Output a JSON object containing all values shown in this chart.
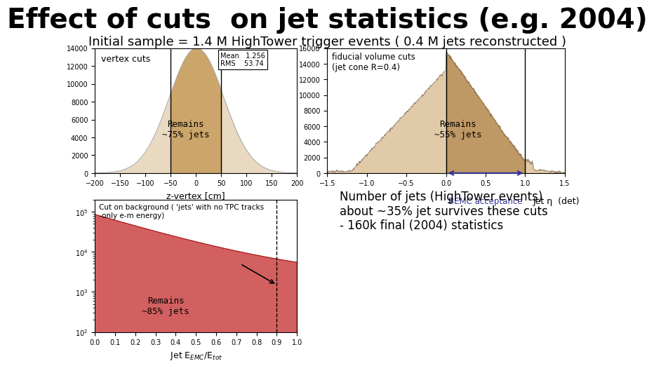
{
  "title": "Effect of cuts  on jet statistics (e.g. 2004)",
  "subtitle": "Initial sample = 1.4 M HighTower trigger events ( 0.4 M jets reconstructed )",
  "title_fontsize": 28,
  "subtitle_fontsize": 13,
  "bg_color": "#ffffff",
  "panel1": {
    "label": "vertex cuts",
    "xlabel": "z-vertex [cm]",
    "mean": 1.256,
    "rms": 53.74,
    "xlim": [
      -200,
      200
    ],
    "ylim": [
      0,
      14000
    ],
    "yticks": [
      0,
      2000,
      4000,
      6000,
      8000,
      10000,
      12000,
      14000
    ],
    "cut_lo": -50,
    "cut_hi": 50,
    "remains_text": "Remains\n~75% jets",
    "hist_color": "#d4b483",
    "hist_edge": "#888888",
    "cut_color": "#c8a060"
  },
  "panel2": {
    "label": "fiducial volume cuts\n(jet cone R=0.4)",
    "xlabel": "Jet η  (det)",
    "xlabel2": "BEMC acceptance",
    "xlim": [
      -1.5,
      1.5
    ],
    "ylim": [
      0,
      16000
    ],
    "yticks": [
      0,
      2000,
      4000,
      6000,
      8000,
      10000,
      12000,
      14000,
      16000
    ],
    "cut_lo": 0.0,
    "cut_hi": 1.0,
    "remains_text": "Remains\n~55% jets",
    "hist_color": "#d4b483",
    "hist_edge": "#8B7355",
    "cut_color": "#b8905a"
  },
  "panel3": {
    "label": "Cut on background ( 'jets' with no TPC tracks\n-only e-m energy)",
    "xlabel": "Jet E₂ₘₙ/Eₜₒₜ",
    "xlim": [
      0,
      1
    ],
    "ylim_log": [
      100,
      200000
    ],
    "xticks": [
      0,
      0.1,
      0.2,
      0.3,
      0.4,
      0.5,
      0.6,
      0.7,
      0.8,
      0.9,
      1.0
    ],
    "cut_x": 0.9,
    "remains_text": "Remains\n~85% jets",
    "hist_color": "#cc4444",
    "hist_edge": "#aa2222"
  },
  "panel4_text": "Number of jets (HighTower events)\nabout ~35% jet survives these cuts\n- 160k final (2004) statistics"
}
